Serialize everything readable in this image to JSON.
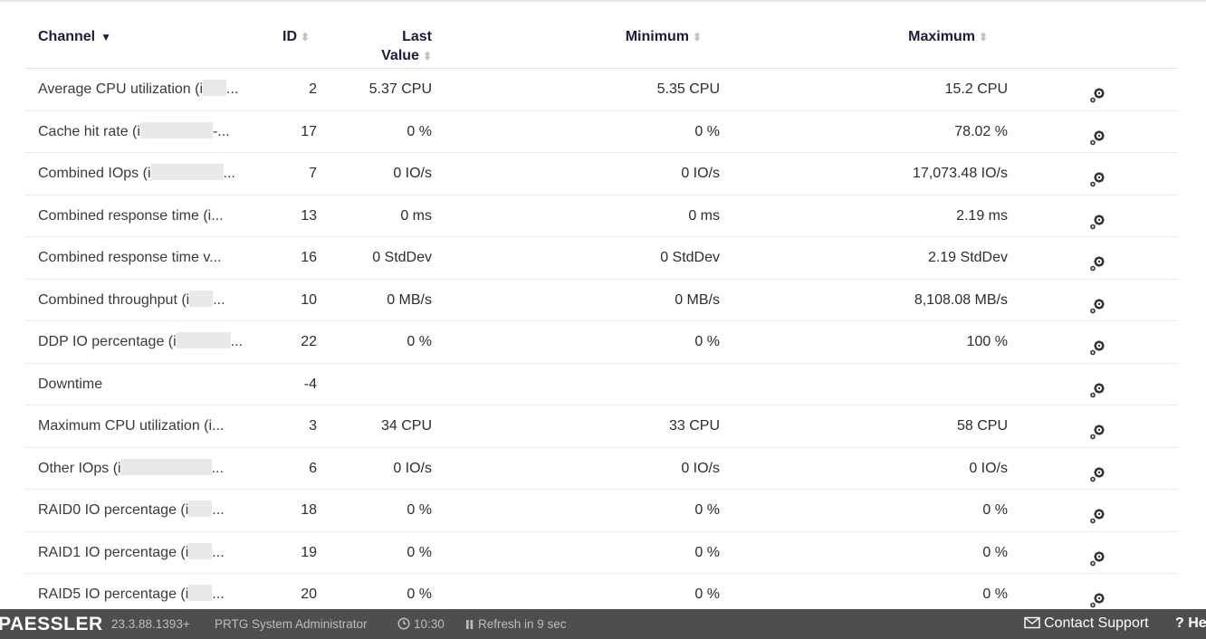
{
  "table": {
    "headers": {
      "channel": "Channel",
      "id": "ID",
      "last_value_line1": "Last",
      "last_value_line2": "Value",
      "minimum": "Minimum",
      "maximum": "Maximum"
    },
    "rows": [
      {
        "channel": "Average CPU utilization (i",
        "suffix": "...",
        "id": "2",
        "last": "5.37 CPU",
        "min": "5.35 CPU",
        "max": "15.2 CPU"
      },
      {
        "channel": "Cache hit rate (i",
        "suffix": "-...",
        "id": "17",
        "last": "0 %",
        "min": "0 %",
        "max": "78.02 %"
      },
      {
        "channel": "Combined IOps (i",
        "suffix": "...",
        "id": "7",
        "last": "0 IO/s",
        "min": "0 IO/s",
        "max": "17,073.48 IO/s"
      },
      {
        "channel": "Combined response time (i...",
        "suffix": "",
        "id": "13",
        "last": "0 ms",
        "min": "0 ms",
        "max": "2.19 ms"
      },
      {
        "channel": "Combined response time v...",
        "suffix": "",
        "id": "16",
        "last": "0 StdDev",
        "min": "0 StdDev",
        "max": "2.19 StdDev"
      },
      {
        "channel": "Combined throughput (i",
        "suffix": "...",
        "id": "10",
        "last": "0 MB/s",
        "min": "0 MB/s",
        "max": "8,108.08 MB/s"
      },
      {
        "channel": "DDP IO percentage (i",
        "suffix": "...",
        "id": "22",
        "last": "0 %",
        "min": "0 %",
        "max": "100 %"
      },
      {
        "channel": "Downtime",
        "suffix": "",
        "id": "-4",
        "last": "",
        "min": "",
        "max": ""
      },
      {
        "channel": "Maximum CPU utilization (i...",
        "suffix": "",
        "id": "3",
        "last": "34 CPU",
        "min": "33 CPU",
        "max": "58 CPU"
      },
      {
        "channel": "Other IOps (i",
        "suffix": "...",
        "id": "6",
        "last": "0 IO/s",
        "min": "0 IO/s",
        "max": "0 IO/s"
      },
      {
        "channel": "RAID0 IO percentage (i",
        "suffix": "...",
        "id": "18",
        "last": "0 %",
        "min": "0 %",
        "max": "0 %"
      },
      {
        "channel": "RAID1 IO percentage (i",
        "suffix": "...",
        "id": "19",
        "last": "0 %",
        "min": "0 %",
        "max": "0 %"
      },
      {
        "channel": "RAID5 IO percentage (i",
        "suffix": "...",
        "id": "20",
        "last": "0 %",
        "min": "0 %",
        "max": "0 %"
      }
    ]
  },
  "footer": {
    "logo": "PAESSLER",
    "version": "23.3.88.1393+",
    "user": "PRTG System Administrator",
    "time": "10:30",
    "refresh": "Refresh in 9 sec",
    "contact": "Contact Support",
    "help": "? He"
  },
  "colors": {
    "header_text": "#1e1b3c",
    "footer_bg": "#4e4e4e",
    "sort_inactive": "#c2c2c2"
  },
  "icons": {
    "row_action": "gears-icon",
    "clock": "clock-icon",
    "pause": "pause-icon",
    "mail": "envelope-icon",
    "sort_desc": "caret-down-icon",
    "sort_both": "sort-icon"
  }
}
